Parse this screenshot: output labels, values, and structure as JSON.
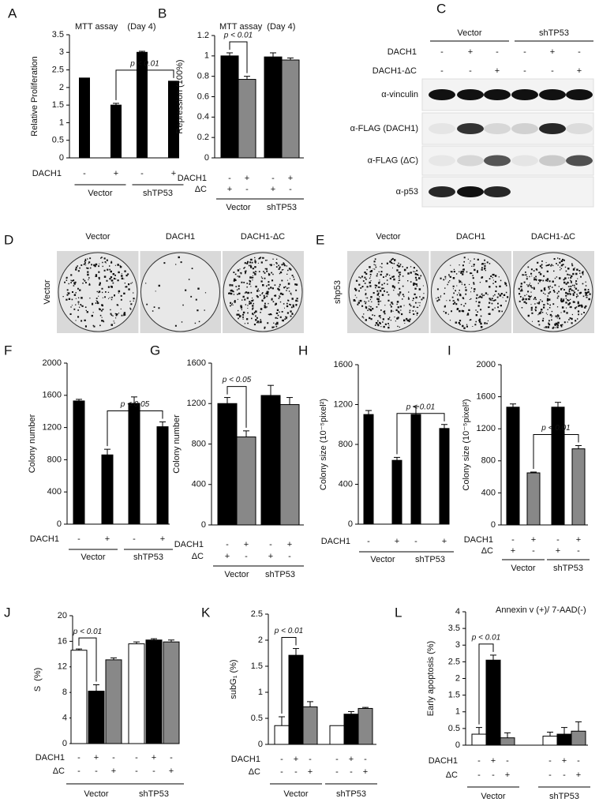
{
  "chart_data": [
    {
      "panel": "A",
      "type": "bar",
      "title": "MTT assay    (Day 4)",
      "y_label": "Relative Proliferation",
      "ylim": [
        0,
        3.5
      ],
      "yticks": [
        0,
        0.5,
        1,
        1.5,
        2,
        2.5,
        3,
        3.5
      ],
      "values": [
        2.27,
        1.5,
        3.0,
        2.18
      ],
      "errors": [
        0,
        0.05,
        0.03,
        0
      ],
      "colors": [
        "#000000",
        "#000000",
        "#000000",
        "#000000"
      ],
      "rows": [
        {
          "name": "DACH1",
          "marks": [
            "-",
            "+",
            "-",
            "+"
          ]
        }
      ],
      "groups": [
        "Vector",
        "shTP53"
      ],
      "annotation": "p < 0.01"
    },
    {
      "panel": "B",
      "type": "bar",
      "title": "MTT assay  (Day 4)",
      "y_label": "Repression (100%)",
      "ylim": [
        0,
        1.2
      ],
      "yticks": [
        0,
        0.2,
        0.4,
        0.6,
        0.8,
        1,
        1.2
      ],
      "values": [
        1.0,
        0.77,
        0.99,
        0.96
      ],
      "errors": [
        0.03,
        0.03,
        0.04,
        0.02
      ],
      "colors": [
        "#000000",
        "#888888",
        "#000000",
        "#888888"
      ],
      "rows": [
        {
          "name": "DACH1",
          "marks": [
            "-",
            "+",
            "-",
            "+"
          ]
        },
        {
          "name": "ΔC",
          "marks": [
            "+",
            "-",
            "+",
            "-"
          ]
        }
      ],
      "groups": [
        "Vector",
        "shTP53"
      ],
      "annotation": "p < 0.01"
    },
    {
      "panel": "F",
      "type": "bar",
      "y_label": "Colony number",
      "ylim": [
        0,
        2000
      ],
      "yticks": [
        0,
        400,
        800,
        1200,
        1600,
        2000
      ],
      "values": [
        1530,
        860,
        1500,
        1210
      ],
      "errors": [
        20,
        70,
        80,
        60
      ],
      "colors": [
        "#000000",
        "#000000",
        "#000000",
        "#000000"
      ],
      "rows": [
        {
          "name": "DACH1",
          "marks": [
            "-",
            "+",
            "-",
            "+"
          ]
        }
      ],
      "groups": [
        "Vector",
        "shTP53"
      ],
      "annotation": "p < 0.05"
    },
    {
      "panel": "G",
      "type": "bar",
      "y_label": "Colony number",
      "ylim": [
        0,
        1600
      ],
      "yticks": [
        0,
        400,
        800,
        1200,
        1600
      ],
      "values": [
        1200,
        870,
        1280,
        1190
      ],
      "errors": [
        60,
        60,
        100,
        70
      ],
      "colors": [
        "#000000",
        "#888888",
        "#000000",
        "#888888"
      ],
      "rows": [
        {
          "name": "DACH1",
          "marks": [
            "-",
            "+",
            "-",
            "+"
          ]
        },
        {
          "name": "ΔC",
          "marks": [
            "+",
            "-",
            "+",
            "-"
          ]
        }
      ],
      "groups": [
        "Vector",
        "shTP53"
      ],
      "annotation": "p < 0.05"
    },
    {
      "panel": "H",
      "type": "bar",
      "y_label": "Colony size (10⁻⁵pixel²)",
      "ylim": [
        0,
        1600
      ],
      "yticks": [
        0,
        400,
        800,
        1200,
        1600
      ],
      "values": [
        1100,
        640,
        1100,
        960
      ],
      "errors": [
        40,
        30,
        80,
        40
      ],
      "colors": [
        "#000000",
        "#000000",
        "#000000",
        "#000000"
      ],
      "rows": [
        {
          "name": "DACH1",
          "marks": [
            "-",
            "+",
            "-",
            "+"
          ]
        }
      ],
      "groups": [
        "Vector",
        "shTP53"
      ],
      "annotation": "p < 0.01"
    },
    {
      "panel": "I",
      "type": "bar",
      "y_label": "Colony size (10⁻⁵pixel²)",
      "ylim": [
        0,
        2000
      ],
      "yticks": [
        0,
        400,
        800,
        1200,
        1600,
        2000
      ],
      "values": [
        1470,
        650,
        1470,
        950
      ],
      "errors": [
        40,
        10,
        60,
        40
      ],
      "colors": [
        "#000000",
        "#888888",
        "#000000",
        "#888888"
      ],
      "rows": [
        {
          "name": "DACH1",
          "marks": [
            "-",
            "+",
            "-",
            "+"
          ]
        },
        {
          "name": "ΔC",
          "marks": [
            "+",
            "-",
            "+",
            "-"
          ]
        }
      ],
      "groups": [
        "Vector",
        "shTP53"
      ],
      "annotation": "p < 0.01"
    },
    {
      "panel": "J",
      "type": "bar",
      "y_label": "S  (%)",
      "ylim": [
        0,
        20
      ],
      "yticks": [
        0,
        4,
        8,
        12,
        16,
        20
      ],
      "values": [
        14.6,
        8.2,
        13.1,
        15.6,
        16.2,
        15.9
      ],
      "errors": [
        0.2,
        1.0,
        0.3,
        0.3,
        0.2,
        0.3
      ],
      "colors": [
        "#ffffff",
        "#000000",
        "#888888",
        "#ffffff",
        "#000000",
        "#888888"
      ],
      "rows": [
        {
          "name": "DACH1",
          "marks": [
            "-",
            "+",
            "-",
            "-",
            "+",
            "-"
          ]
        },
        {
          "name": "ΔC",
          "marks": [
            "-",
            "-",
            "+",
            "-",
            "-",
            "+"
          ]
        }
      ],
      "groups": [
        "Vector",
        "shTP53"
      ],
      "annotation": "p < 0.01"
    },
    {
      "panel": "K",
      "type": "bar",
      "y_label": "subG₁ (%)",
      "ylim": [
        0,
        2.5
      ],
      "yticks": [
        0,
        0.5,
        1,
        1.5,
        2,
        2.5
      ],
      "values": [
        0.36,
        1.71,
        0.72,
        0.36,
        0.58,
        0.69
      ],
      "errors": [
        0.17,
        0.13,
        0.1,
        0,
        0.05,
        0.02
      ],
      "colors": [
        "#ffffff",
        "#000000",
        "#888888",
        "#ffffff",
        "#000000",
        "#888888"
      ],
      "rows": [
        {
          "name": "DACH1",
          "marks": [
            "-",
            "+",
            "-",
            "-",
            "+",
            "-"
          ]
        },
        {
          "name": "ΔC",
          "marks": [
            "-",
            "-",
            "+",
            "-",
            "-",
            "+"
          ]
        }
      ],
      "groups": [
        "Vector",
        "shTP53"
      ],
      "annotation": "p < 0.01"
    },
    {
      "panel": "L",
      "type": "bar",
      "title": "Annexin v (+)/ 7-AAD(-)",
      "y_label": "Early apoptosis (%)",
      "ylim": [
        0,
        4
      ],
      "yticks": [
        0,
        0.5,
        1,
        1.5,
        2,
        2.5,
        3,
        3.5,
        4
      ],
      "values": [
        0.33,
        2.55,
        0.22,
        0.27,
        0.33,
        0.42
      ],
      "errors": [
        0.2,
        0.15,
        0.15,
        0.12,
        0.2,
        0.28
      ],
      "colors": [
        "#ffffff",
        "#000000",
        "#888888",
        "#ffffff",
        "#000000",
        "#888888"
      ],
      "rows": [
        {
          "name": "DACH1",
          "marks": [
            "-",
            "+",
            "-",
            "-",
            "+",
            "-"
          ]
        },
        {
          "name": "ΔC",
          "marks": [
            "-",
            "-",
            "+",
            "-",
            "-",
            "+"
          ]
        }
      ],
      "groups": [
        "Vector",
        "shTP53"
      ],
      "annotation": "p < 0.01"
    }
  ],
  "blot": {
    "panel": "C",
    "groups": [
      "Vector",
      "shTP53"
    ],
    "rows": [
      {
        "name": "DACH1",
        "marks": [
          "-",
          "+",
          "-",
          "-",
          "+",
          "-"
        ]
      },
      {
        "name": "DACH1-ΔC",
        "marks": [
          "-",
          "-",
          "+",
          "-",
          "-",
          "+"
        ]
      }
    ],
    "blots": [
      "α-vinculin",
      "α-FLAG (DACH1)",
      "α-FLAG (ΔC)",
      "α-p53"
    ]
  },
  "colony_panels": [
    {
      "panel": "D",
      "row_label": "Vector",
      "columns": [
        "Vector",
        "DACH1",
        "DACH1-ΔC"
      ]
    },
    {
      "panel": "E",
      "row_label": "shp53",
      "columns": [
        "Vector",
        "DACH1",
        "DACH1-ΔC"
      ]
    }
  ]
}
